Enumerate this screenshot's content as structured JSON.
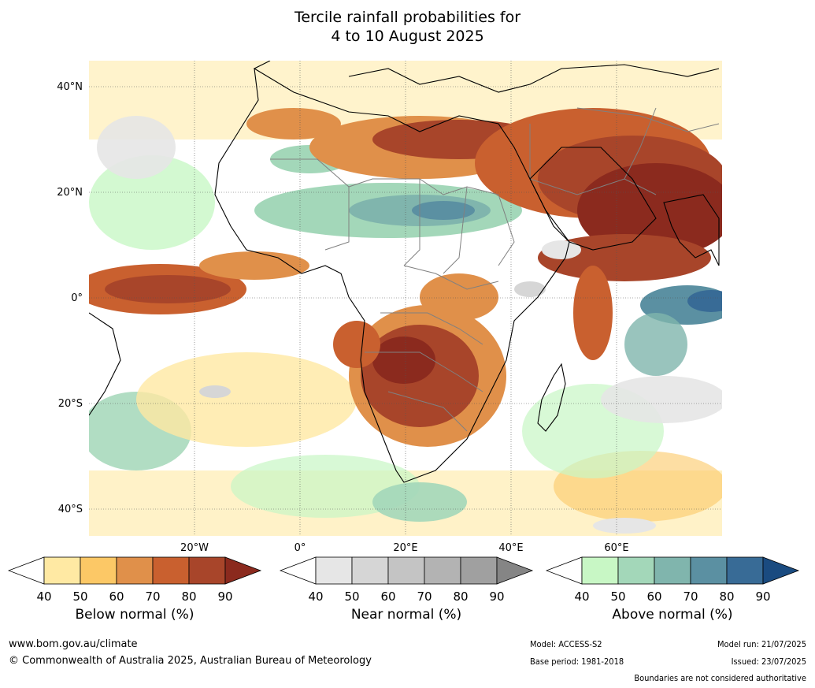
{
  "title": {
    "line1": "Tercile rainfall probabilities for",
    "line2": "4 to 10 August 2025"
  },
  "map": {
    "region": "Africa and surrounding oceans",
    "lat_labels": [
      "40°N",
      "20°N",
      "0°",
      "20°S",
      "40°S"
    ],
    "lat_values": [
      40,
      20,
      0,
      -20,
      -40
    ],
    "lon_labels": [
      "20°W",
      "0°",
      "20°E",
      "40°E",
      "60°E"
    ],
    "lon_values": [
      -20,
      0,
      20,
      40,
      60
    ],
    "extent": {
      "lon_min": -40,
      "lon_max": 80,
      "lat_min": -45,
      "lat_max": 45
    }
  },
  "colorbars": [
    {
      "caption": "Below normal (%)",
      "ticks": [
        "40",
        "50",
        "60",
        "70",
        "80",
        "90"
      ],
      "colors": [
        "#ffffff",
        "#ffe9a3",
        "#fcc866",
        "#e0904a",
        "#c9602f",
        "#a8452a",
        "#8b2a1e"
      ]
    },
    {
      "caption": "Near normal (%)",
      "ticks": [
        "40",
        "50",
        "60",
        "70",
        "80",
        "90"
      ],
      "colors": [
        "#ffffff",
        "#e6e6e6",
        "#d6d6d6",
        "#c4c4c4",
        "#b3b3b3",
        "#a0a0a0",
        "#858585"
      ]
    },
    {
      "caption": "Above normal (%)",
      "ticks": [
        "40",
        "50",
        "60",
        "70",
        "80",
        "90"
      ],
      "colors": [
        "#ffffff",
        "#c8f7c5",
        "#a3d7b9",
        "#80b5ad",
        "#5b90a2",
        "#386b96",
        "#1a4b80"
      ]
    }
  ],
  "footer": {
    "website": "www.bom.gov.au/climate",
    "copyright": "© Commonwealth of Australia 2025, Australian Bureau of Meteorology",
    "model": "Model: ACCESS-S2",
    "base_period": "Base period: 1981-2018",
    "model_run": "Model run: 21/07/2025",
    "issued": "Issued: 23/07/2025",
    "disclaimer": "Boundaries are not considered authoritative"
  },
  "colors": {
    "land_outline": "#000000",
    "country_border": "#808080",
    "gridline": "#555555"
  }
}
